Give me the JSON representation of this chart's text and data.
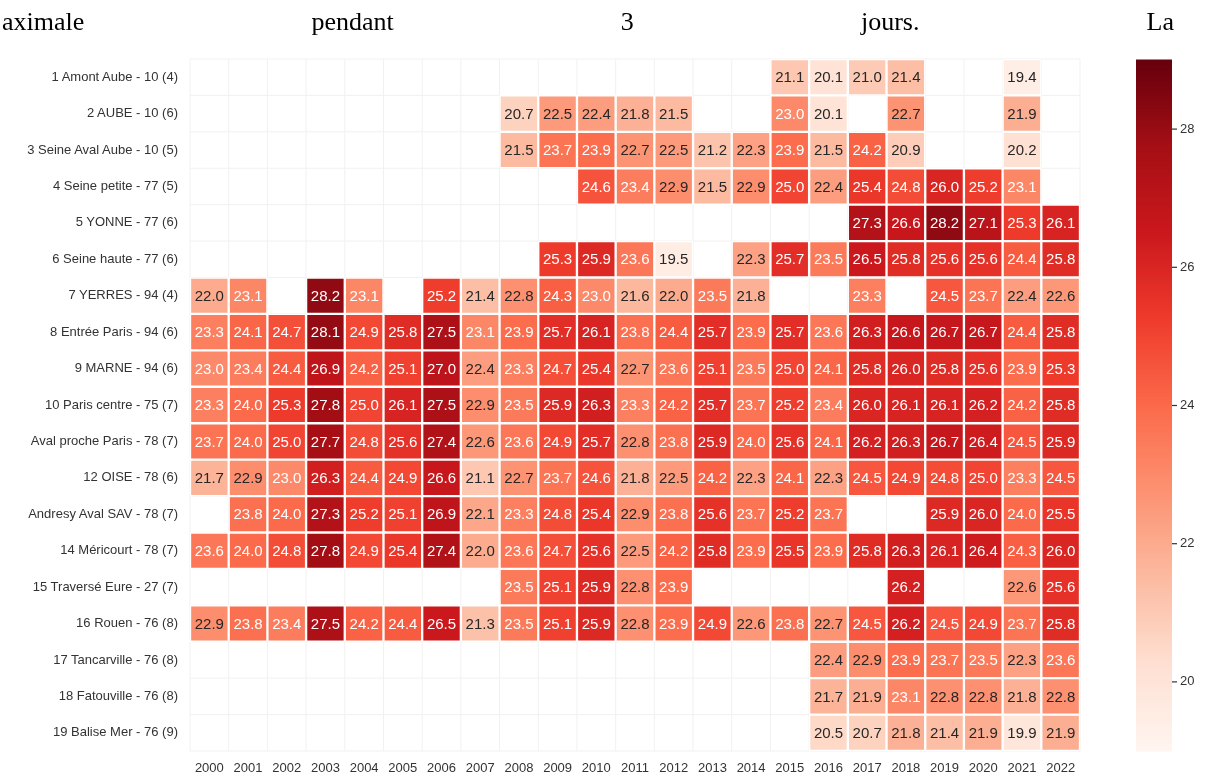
{
  "chart_data": {
    "type": "heatmap",
    "title": "aximale pendant 3 jours. La",
    "categories": [
      "2000",
      "2001",
      "2002",
      "2003",
      "2004",
      "2005",
      "2006",
      "2007",
      "2008",
      "2009",
      "2010",
      "2011",
      "2012",
      "2013",
      "2014",
      "2015",
      "2016",
      "2017",
      "2018",
      "2019",
      "2020",
      "2021",
      "2022"
    ],
    "y_categories": [
      "1 Amont Aube - 10 (4)",
      "2 AUBE - 10 (6)",
      "3 Seine Aval Aube - 10 (5)",
      "4 Seine petite - 77 (5)",
      "5 YONNE - 77 (6)",
      "6 Seine haute - 77 (6)",
      "7 YERRES - 94 (4)",
      "8 Entrée Paris - 94 (6)",
      "9 MARNE - 94 (6)",
      "10 Paris centre - 75 (7)",
      "Aval proche Paris - 78 (7)",
      "12 OISE - 78 (6)",
      "Andresy Aval SAV - 78 (7)",
      "14 Méricourt - 78 (7)",
      "15 Traversé Eure - 27 (7)",
      "16 Rouen - 76 (8)",
      "17 Tancarville - 76 (8)",
      "18 Fatouville - 76 (8)",
      "19 Balise Mer - 76 (9)"
    ],
    "cells": [
      [
        null,
        null,
        null,
        null,
        null,
        null,
        null,
        null,
        null,
        null,
        null,
        null,
        null,
        null,
        null,
        21.1,
        20.1,
        21.0,
        21.4,
        null,
        null,
        19.4,
        null
      ],
      [
        null,
        null,
        null,
        null,
        null,
        null,
        null,
        null,
        20.7,
        22.5,
        22.4,
        21.8,
        21.5,
        null,
        null,
        23.0,
        20.1,
        null,
        22.7,
        null,
        null,
        21.9,
        null
      ],
      [
        null,
        null,
        null,
        null,
        null,
        null,
        null,
        null,
        21.5,
        23.7,
        23.9,
        22.7,
        22.5,
        21.2,
        22.3,
        23.9,
        21.5,
        24.2,
        20.9,
        null,
        null,
        20.2,
        null
      ],
      [
        null,
        null,
        null,
        null,
        null,
        null,
        null,
        null,
        null,
        null,
        24.6,
        23.4,
        22.9,
        21.5,
        22.9,
        25.0,
        22.4,
        25.4,
        24.8,
        26.0,
        25.2,
        23.1,
        null
      ],
      [
        null,
        null,
        null,
        null,
        null,
        null,
        null,
        null,
        null,
        null,
        null,
        null,
        null,
        null,
        null,
        null,
        null,
        27.3,
        26.6,
        28.2,
        27.1,
        25.3,
        26.1
      ],
      [
        null,
        null,
        null,
        null,
        null,
        null,
        null,
        null,
        null,
        25.3,
        25.9,
        23.6,
        19.5,
        null,
        22.3,
        25.7,
        23.5,
        26.5,
        25.8,
        25.6,
        25.6,
        24.4,
        25.8
      ],
      [
        22.0,
        23.1,
        null,
        28.2,
        23.1,
        null,
        25.2,
        21.4,
        22.8,
        24.3,
        23.0,
        21.6,
        22.0,
        23.5,
        21.8,
        null,
        null,
        23.3,
        null,
        24.5,
        23.7,
        22.4,
        22.6
      ],
      [
        23.3,
        24.1,
        24.7,
        28.1,
        24.9,
        25.8,
        27.5,
        23.1,
        23.9,
        25.7,
        26.1,
        23.8,
        24.4,
        25.7,
        23.9,
        25.7,
        23.6,
        26.3,
        26.6,
        26.7,
        26.7,
        24.4,
        25.8
      ],
      [
        23.0,
        23.4,
        24.4,
        26.9,
        24.2,
        25.1,
        27.0,
        22.4,
        23.3,
        24.7,
        25.4,
        22.7,
        23.6,
        25.1,
        23.5,
        25.0,
        24.1,
        25.8,
        26.0,
        25.8,
        25.6,
        23.9,
        25.3
      ],
      [
        23.3,
        24.0,
        25.3,
        27.8,
        25.0,
        26.1,
        27.5,
        22.9,
        23.5,
        25.9,
        26.3,
        23.3,
        24.2,
        25.7,
        23.7,
        25.2,
        23.4,
        26.0,
        26.1,
        26.1,
        26.2,
        24.2,
        25.8
      ],
      [
        23.7,
        24.0,
        25.0,
        27.7,
        24.8,
        25.6,
        27.4,
        22.6,
        23.6,
        24.9,
        25.7,
        22.8,
        23.8,
        25.9,
        24.0,
        25.6,
        24.1,
        26.2,
        26.3,
        26.7,
        26.4,
        24.5,
        25.9
      ],
      [
        21.7,
        22.9,
        23.0,
        26.3,
        24.4,
        24.9,
        26.6,
        21.1,
        22.7,
        23.7,
        24.6,
        21.8,
        22.5,
        24.2,
        22.3,
        24.1,
        22.3,
        24.5,
        24.9,
        24.8,
        25.0,
        23.3,
        24.5
      ],
      [
        null,
        23.8,
        24.0,
        27.3,
        25.2,
        25.1,
        26.9,
        22.1,
        23.3,
        24.8,
        25.4,
        22.9,
        23.8,
        25.6,
        23.7,
        25.2,
        23.7,
        null,
        null,
        25.9,
        26.0,
        24.0,
        25.5
      ],
      [
        23.6,
        24.0,
        24.8,
        27.8,
        24.9,
        25.4,
        27.4,
        22.0,
        23.6,
        24.7,
        25.6,
        22.5,
        24.2,
        25.8,
        23.9,
        25.5,
        23.9,
        25.8,
        26.3,
        26.1,
        26.4,
        24.3,
        26.0
      ],
      [
        null,
        null,
        null,
        null,
        null,
        null,
        null,
        null,
        23.5,
        25.1,
        25.9,
        22.8,
        23.9,
        null,
        null,
        null,
        null,
        null,
        26.2,
        null,
        null,
        22.6,
        25.6
      ],
      [
        22.9,
        23.8,
        23.4,
        27.5,
        24.2,
        24.4,
        26.5,
        21.3,
        23.5,
        25.1,
        25.9,
        22.8,
        23.9,
        24.9,
        22.6,
        23.8,
        22.7,
        24.5,
        26.2,
        24.5,
        24.9,
        23.7,
        25.8
      ],
      [
        null,
        null,
        null,
        null,
        null,
        null,
        null,
        null,
        null,
        null,
        null,
        null,
        null,
        null,
        null,
        null,
        22.4,
        22.9,
        23.9,
        23.7,
        23.5,
        22.3,
        23.6
      ],
      [
        null,
        null,
        null,
        null,
        null,
        null,
        null,
        null,
        null,
        null,
        null,
        null,
        null,
        null,
        null,
        null,
        21.7,
        21.9,
        23.1,
        22.8,
        22.8,
        21.8,
        22.8
      ],
      [
        null,
        null,
        null,
        null,
        null,
        null,
        null,
        null,
        null,
        null,
        null,
        null,
        null,
        null,
        null,
        null,
        20.5,
        20.7,
        21.8,
        21.4,
        21.9,
        19.9,
        21.9
      ]
    ],
    "cell_labels": [
      [
        null,
        null,
        null,
        null,
        null,
        null,
        null,
        null,
        null,
        null,
        null,
        null,
        null,
        null,
        null,
        "21.1",
        "20.1",
        "21.0",
        "21.4",
        null,
        null,
        "19.4",
        null
      ],
      [
        null,
        null,
        null,
        null,
        null,
        null,
        null,
        null,
        "20.7",
        "22.5",
        "22.4",
        "21.8",
        "21.5",
        null,
        null,
        "23.0",
        "20.1",
        null,
        "22.7",
        null,
        null,
        "21.9",
        null
      ],
      [
        null,
        null,
        null,
        null,
        null,
        null,
        null,
        null,
        "21.5",
        "23.7",
        "23.9",
        "22.7",
        "22.5",
        "21.2",
        "22.3",
        "23.9",
        "21.5",
        "24.2",
        "20.9",
        null,
        null,
        "20.2",
        null
      ],
      [
        null,
        null,
        null,
        null,
        null,
        null,
        null,
        null,
        null,
        null,
        "24.6",
        "23.4",
        "22.9",
        "21.5",
        "22.9",
        "25.0",
        "22.4",
        "25.4",
        "24.8",
        "26.0",
        "25.2",
        "23.1",
        null
      ],
      [
        null,
        null,
        null,
        null,
        null,
        null,
        null,
        null,
        null,
        null,
        null,
        null,
        null,
        null,
        null,
        null,
        null,
        "27.3",
        "26.6",
        "28.2",
        "27.1",
        "25.3",
        "26.1"
      ],
      [
        null,
        null,
        null,
        null,
        null,
        null,
        null,
        null,
        null,
        "25.3",
        "25.9",
        "23.6",
        "19.5",
        null,
        "22.3",
        "25.7",
        "23.5",
        "26.5",
        "25.8",
        "25.6",
        "25.6",
        "24.4",
        "25.8"
      ],
      [
        "22.0",
        "23.1",
        null,
        "28.2",
        "23.1",
        null,
        "25.2",
        "21.4",
        "22.8",
        "24.3",
        "23.0",
        "21.6",
        "22.0",
        "23.5",
        "21.8",
        null,
        null,
        "23.3",
        null,
        "24.5",
        "23.7",
        "22.4",
        "22.6"
      ],
      [
        "23.3",
        "24.1",
        "24.7",
        "28.1",
        "24.9",
        "25.8",
        "27.5",
        "23.1",
        "23.9",
        "25.7",
        "26.1",
        "23.8",
        "24.4",
        "25.7",
        "23.9",
        "25.7",
        "23.6",
        "26.3",
        "26.6",
        "26.7",
        "26.7",
        "24.4",
        "25.8"
      ],
      [
        "23.0",
        "23.4",
        "24.4",
        "26.9",
        "24.2",
        "25.1",
        "27.0",
        "22.4",
        "23.3",
        "24.7",
        "25.4",
        "22.7",
        "23.6",
        "25.1",
        "23.5",
        "25.0",
        "24.1",
        "25.8",
        "26.0",
        "25.8",
        "25.6",
        "23.9",
        "25.3"
      ],
      [
        "23.3",
        "24.0",
        "25.3",
        "27.8",
        "25.0",
        "26.1",
        "27.5",
        "22.9",
        "23.5",
        "25.9",
        "26.3",
        "23.3",
        "24.2",
        "25.7",
        "23.7",
        "25.2",
        "23.4",
        "26.0",
        "26.1",
        "26.1",
        "26.2",
        "24.2",
        "25.8"
      ],
      [
        "23.7",
        "24.0",
        "25.0",
        "27.7",
        "24.8",
        "25.6",
        "27.4",
        "22.6",
        "23.6",
        "24.9",
        "25.7",
        "22.8",
        "23.8",
        "25.9",
        "24.0",
        "25.6",
        "24.1",
        "26.2",
        "26.3",
        "26.7",
        "26.4",
        "24.5",
        "25.9"
      ],
      [
        "21.7",
        "22.9",
        "23.0",
        "26.3",
        "24.4",
        "24.9",
        "26.6",
        "21.1",
        "22.7",
        "23.7",
        "24.6",
        "21.8",
        "22.5",
        "24.2",
        "22.3",
        "24.1",
        "22.3",
        "24.5",
        "24.9",
        "24.8",
        "25.0",
        "23.3",
        "24.5"
      ],
      [
        null,
        "23.8",
        "24.0",
        "27.3",
        "25.2",
        "25.1",
        "26.9",
        "22.1",
        "23.3",
        "24.8",
        "25.4",
        "22.9",
        "23.8",
        "25.6",
        "23.7",
        "25.2",
        "23.7",
        null,
        null,
        "25.9",
        "26.0",
        "24.0",
        "25.5"
      ],
      [
        "23.6",
        "24.0",
        "24.8",
        "27.8",
        "24.9",
        "25.4",
        "27.4",
        "22.0",
        "23.6",
        "24.7",
        "25.6",
        "22.5",
        "24.2",
        "25.8",
        "23.9",
        "25.5",
        "23.9",
        "25.8",
        "26.3",
        "26.1",
        "26.4",
        "24.3",
        "26.0"
      ],
      [
        null,
        null,
        null,
        null,
        null,
        null,
        null,
        null,
        "23.5",
        "25.1",
        "25.9",
        "22.8",
        "23.9",
        null,
        null,
        null,
        null,
        null,
        "26.2",
        null,
        null,
        "22.6",
        "25.6"
      ],
      [
        "22.9",
        "23.8",
        "23.4",
        "27.5",
        "24.2",
        "24.4",
        "26.5",
        "21.3",
        "23.5",
        "25.1",
        "25.9",
        "22.8",
        "23.9",
        "24.9",
        "22.6",
        "23.8",
        "22.7",
        "24.5",
        "26.2",
        "24.5",
        "24.9",
        "23.7",
        "25.8"
      ],
      [
        null,
        null,
        null,
        null,
        null,
        null,
        null,
        null,
        null,
        null,
        null,
        null,
        null,
        null,
        null,
        null,
        "22.4",
        "22.9",
        "23.9",
        "23.7",
        "23.5",
        "22.3",
        "23.6"
      ],
      [
        null,
        null,
        null,
        null,
        null,
        null,
        null,
        null,
        null,
        null,
        null,
        null,
        null,
        null,
        null,
        null,
        "21.7",
        "21.9",
        "23.1",
        "22.8",
        "22.8",
        "21.8",
        "22.8"
      ],
      [
        null,
        null,
        null,
        null,
        null,
        null,
        null,
        null,
        null,
        null,
        null,
        null,
        null,
        null,
        null,
        null,
        "20.5",
        "20.7",
        "21.8",
        "21.4",
        "21.9",
        "19.9",
        "21.9"
      ]
    ],
    "clim": [
      19,
      29
    ],
    "cticks": [
      20,
      22,
      24,
      26,
      28
    ],
    "data_labels": true,
    "grid": true
  }
}
